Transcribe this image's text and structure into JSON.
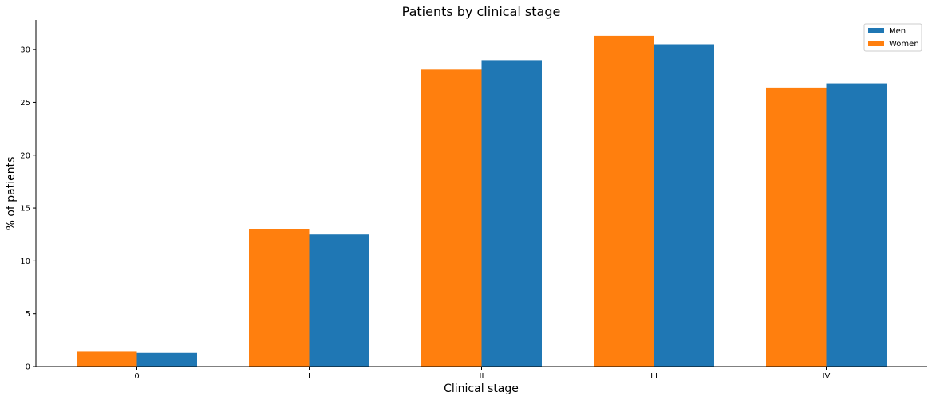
{
  "chart_data": {
    "type": "bar",
    "title": "Patients by clinical stage",
    "xlabel": "Clinical stage",
    "ylabel": "% of patients",
    "categories": [
      "0",
      "I",
      "II",
      "III",
      "IV"
    ],
    "ylim": [
      0,
      32.8
    ],
    "yticks": [
      0,
      5,
      10,
      15,
      20,
      25,
      30
    ],
    "grid": false,
    "legend_position": "top-right",
    "series": [
      {
        "name": "Women",
        "color": "#ff7f0e",
        "values": [
          1.4,
          13.0,
          28.1,
          31.3,
          26.4
        ]
      },
      {
        "name": "Men",
        "color": "#1f77b4",
        "values": [
          1.3,
          12.5,
          29.0,
          30.5,
          26.8
        ]
      }
    ],
    "legend_order": [
      "Men",
      "Women"
    ]
  }
}
